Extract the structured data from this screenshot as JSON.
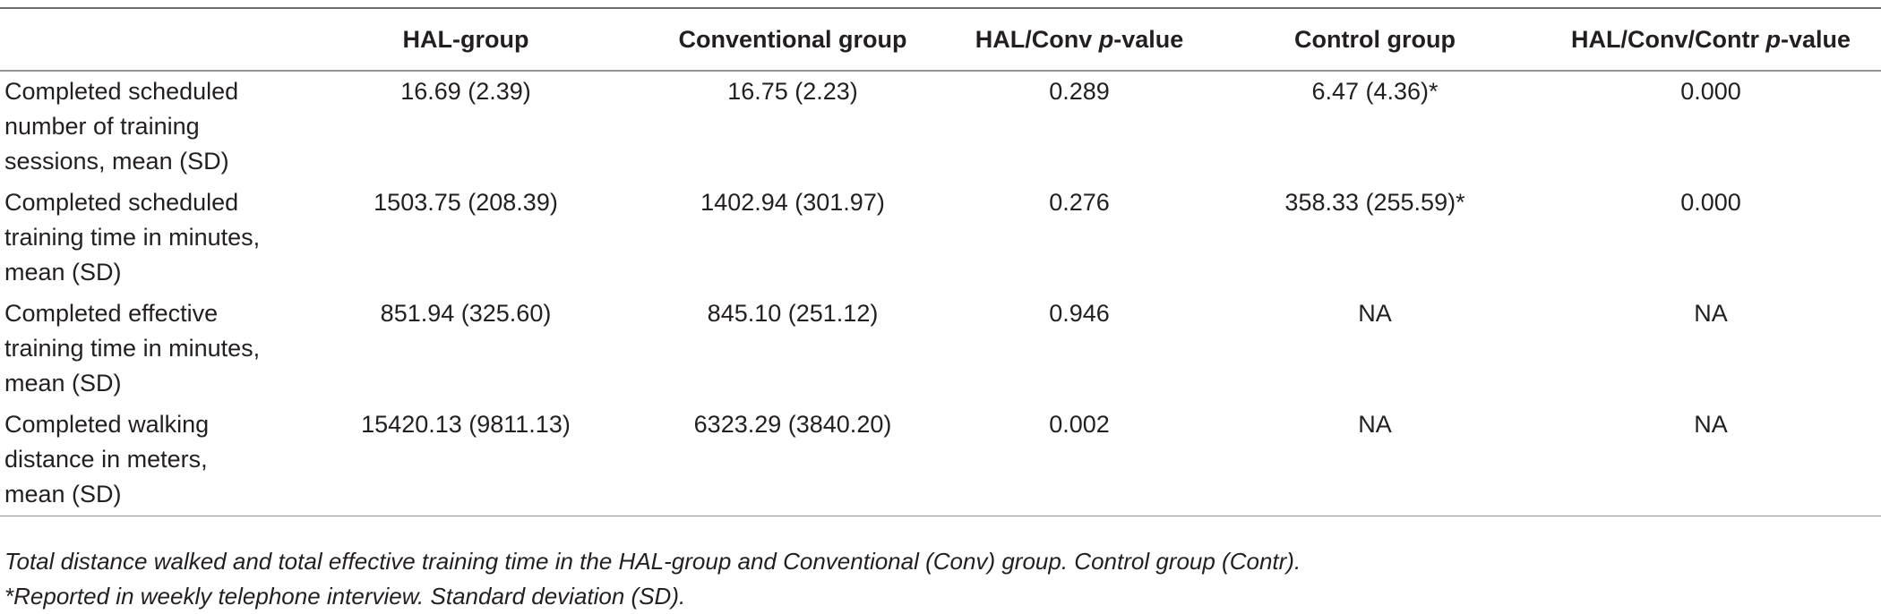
{
  "table": {
    "columns": [
      "",
      "HAL-group",
      "Conventional group",
      "HAL/Conv p-value",
      "Control group",
      "HAL/Conv/Contr p-value"
    ],
    "header_parts": {
      "col3_prefix": "HAL/Conv ",
      "col3_italic": "p",
      "col3_suffix": "-value",
      "col5_prefix": "HAL/Conv/Contr ",
      "col5_italic": "p",
      "col5_suffix": "-value"
    },
    "rows": [
      {
        "label_lines": [
          "Completed scheduled",
          "number of training",
          "sessions, mean (SD)"
        ],
        "hal": "16.69 (2.39)",
        "conv": "16.75 (2.23)",
        "p_hal_conv": "0.289",
        "control": "6.47 (4.36)*",
        "p_all": "0.000"
      },
      {
        "label_lines": [
          "Completed scheduled",
          "training time in minutes,",
          "mean (SD)"
        ],
        "hal": "1503.75 (208.39)",
        "conv": "1402.94 (301.97)",
        "p_hal_conv": "0.276",
        "control": "358.33 (255.59)*",
        "p_all": "0.000"
      },
      {
        "label_lines": [
          "Completed effective",
          "training time in minutes,",
          "mean (SD)"
        ],
        "hal": "851.94 (325.60)",
        "conv": "845.10 (251.12)",
        "p_hal_conv": "0.946",
        "control": "NA",
        "p_all": "NA"
      },
      {
        "label_lines": [
          "Completed walking",
          "distance in meters,",
          "mean (SD)"
        ],
        "hal": "15420.13 (9811.13)",
        "conv": "6323.29 (3840.20)",
        "p_hal_conv": "0.002",
        "control": "NA",
        "p_all": "NA"
      }
    ]
  },
  "footnotes": [
    "Total distance walked and total effective training time in the HAL-group and Conventional (Conv) group. Control group (Contr).",
    "*Reported in weekly telephone interview. Standard deviation (SD)."
  ]
}
